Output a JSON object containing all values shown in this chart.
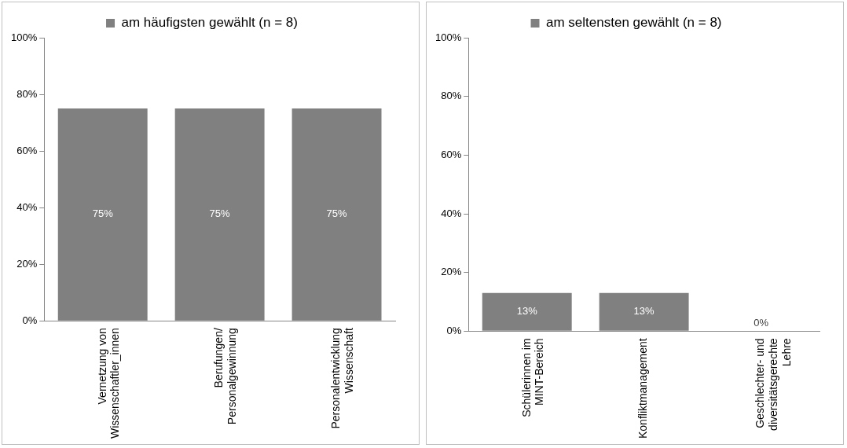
{
  "chart_data": [
    {
      "type": "bar",
      "categories": [
        "Vernetzung von Wissenschaftler_innen",
        "Berufungen/ Personalgewinnung",
        "Personalentwicklung Wissenschaft"
      ],
      "series": [
        {
          "name": "am häufigsten gewählt (n = 8)",
          "color": "#808080",
          "values": [
            75,
            75,
            75
          ],
          "value_labels": [
            "75%",
            "75%",
            "75%"
          ]
        }
      ],
      "ylim": [
        0,
        100
      ],
      "yticks": [
        {
          "value": 0,
          "label": "0%"
        },
        {
          "value": 20,
          "label": "20%"
        },
        {
          "value": 40,
          "label": "40%"
        },
        {
          "value": 60,
          "label": "60%"
        },
        {
          "value": 80,
          "label": "80%"
        },
        {
          "value": 100,
          "label": "100%"
        }
      ],
      "grid": false,
      "legend": "top"
    },
    {
      "type": "bar",
      "categories": [
        "Schülerinnen im MINT-Bereich",
        "Konfliktmanagement",
        "Geschlechter- und diversitätsgerechte Lehre"
      ],
      "series": [
        {
          "name": "am seltensten gewählt (n = 8)",
          "color": "#808080",
          "values": [
            13,
            13,
            0
          ],
          "value_labels": [
            "13%",
            "13%",
            "0%"
          ]
        }
      ],
      "ylim": [
        0,
        100
      ],
      "yticks": [
        {
          "value": 0,
          "label": "0%"
        },
        {
          "value": 20,
          "label": "20%"
        },
        {
          "value": 40,
          "label": "40%"
        },
        {
          "value": 60,
          "label": "60%"
        },
        {
          "value": 80,
          "label": "80%"
        },
        {
          "value": 100,
          "label": "100%"
        }
      ],
      "grid": false,
      "legend": "top"
    }
  ]
}
